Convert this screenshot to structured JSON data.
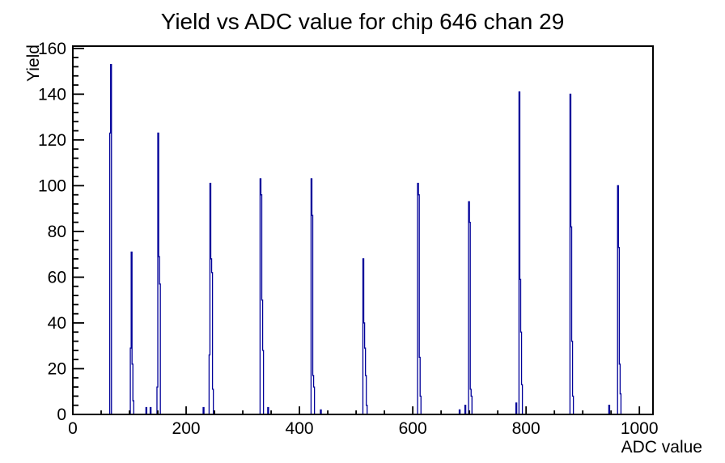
{
  "title": "Yield vs ADC value for chip 646 chan 29",
  "chart_data": {
    "type": "bar",
    "subtype": "histogram-spikes",
    "title": "Yield vs ADC value for chip 646 chan 29",
    "xlabel": "ADC value",
    "ylabel": "Yield",
    "grid": "off",
    "legend": "none",
    "line_color": "#000099",
    "frame_color": "#000000",
    "background_color": "#ffffff",
    "x_axis": {
      "min": 0,
      "max": 1024,
      "major_tick_step": 200,
      "minor_tick_step": 50,
      "tick_label_values": [
        0,
        200,
        400,
        600,
        800,
        1000
      ],
      "tick_labels": [
        "0",
        "200",
        "400",
        "600",
        "800",
        "1000"
      ]
    },
    "y_axis": {
      "min": 0,
      "max": 161,
      "major_tick_step": 20,
      "minor_tick_step": 4,
      "tick_label_values": [
        0,
        20,
        40,
        60,
        80,
        100,
        120,
        140,
        160
      ],
      "tick_labels": [
        "0",
        "20",
        "40",
        "60",
        "80",
        "100",
        "120",
        "140",
        "160"
      ]
    },
    "bin_width_adc": 1.5,
    "clusters": [
      {
        "center": 66,
        "bins": [
          [
            65.2,
            123
          ],
          [
            66.7,
            153
          ]
        ]
      },
      {
        "center": 104,
        "bins": [
          [
            101.5,
            29
          ],
          [
            103,
            71
          ],
          [
            104.5,
            22
          ],
          [
            106,
            6
          ]
        ]
      },
      {
        "center": 151,
        "bins": [
          [
            148.5,
            12
          ],
          [
            150,
            123
          ],
          [
            151.5,
            69
          ],
          [
            153,
            57
          ]
        ]
      },
      {
        "center": 242,
        "bins": [
          [
            240.5,
            26
          ],
          [
            242,
            101
          ],
          [
            243.5,
            68
          ],
          [
            245,
            62
          ],
          [
            246.5,
            11
          ]
        ]
      },
      {
        "center": 332,
        "bins": [
          [
            330.5,
            103
          ],
          [
            332,
            96
          ],
          [
            333.5,
            50
          ],
          [
            335,
            28
          ]
        ]
      },
      {
        "center": 422,
        "bins": [
          [
            420.5,
            103
          ],
          [
            422,
            87
          ],
          [
            423.5,
            17
          ],
          [
            425,
            12
          ]
        ]
      },
      {
        "center": 514,
        "bins": [
          [
            512,
            68
          ],
          [
            513.5,
            40
          ],
          [
            515,
            29
          ],
          [
            516.5,
            17
          ],
          [
            518,
            4
          ]
        ]
      },
      {
        "center": 610,
        "bins": [
          [
            608.5,
            101
          ],
          [
            610,
            96
          ],
          [
            611.5,
            25
          ],
          [
            613,
            8
          ]
        ]
      },
      {
        "center": 700,
        "bins": [
          [
            698.5,
            93
          ],
          [
            700,
            84
          ],
          [
            701.5,
            11
          ],
          [
            703,
            8
          ]
        ]
      },
      {
        "center": 789,
        "bins": [
          [
            787.5,
            141
          ],
          [
            789,
            59
          ],
          [
            790.5,
            36
          ],
          [
            792,
            13
          ]
        ]
      },
      {
        "center": 879,
        "bins": [
          [
            877.5,
            140
          ],
          [
            879,
            82
          ],
          [
            880.5,
            32
          ],
          [
            882,
            8
          ]
        ]
      },
      {
        "center": 963,
        "bins": [
          [
            961.5,
            100
          ],
          [
            963,
            73
          ],
          [
            964.5,
            22
          ],
          [
            966,
            9
          ]
        ]
      },
      {
        "center": 129,
        "bins": [
          [
            129,
            3
          ]
        ]
      },
      {
        "center": 137,
        "bins": [
          [
            136.5,
            3
          ]
        ]
      },
      {
        "center": 230,
        "bins": [
          [
            230,
            3
          ]
        ]
      },
      {
        "center": 344,
        "bins": [
          [
            344,
            3
          ]
        ]
      },
      {
        "center": 437,
        "bins": [
          [
            437,
            2
          ]
        ]
      },
      {
        "center": 682,
        "bins": [
          [
            682,
            2
          ]
        ]
      },
      {
        "center": 692,
        "bins": [
          [
            692,
            4
          ]
        ]
      },
      {
        "center": 782,
        "bins": [
          [
            782,
            5
          ]
        ]
      },
      {
        "center": 946,
        "bins": [
          [
            946,
            4
          ]
        ]
      }
    ]
  }
}
